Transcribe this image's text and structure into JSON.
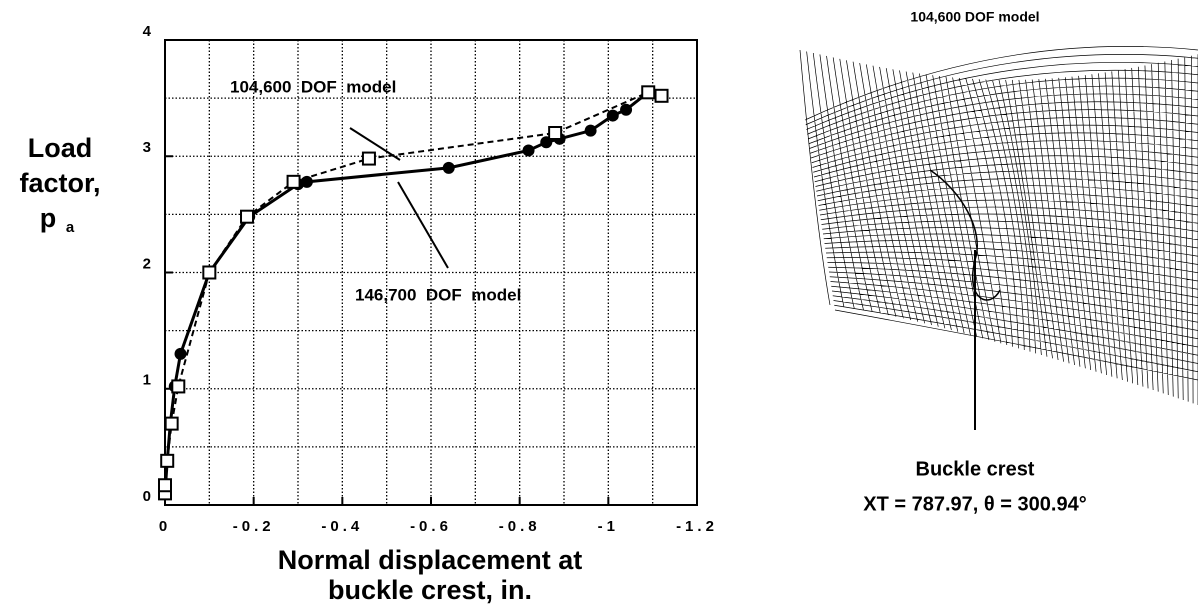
{
  "chart_data": {
    "type": "line",
    "xlim": [
      0,
      -1.2
    ],
    "ylim": [
      0,
      4
    ],
    "xticks": [
      0,
      -0.2,
      -0.4,
      -0.6,
      -0.8,
      -1,
      -1.2
    ],
    "yticks": [
      0,
      1,
      2,
      3,
      4
    ],
    "x_grid_lines": [
      0,
      -0.1,
      -0.2,
      -0.3,
      -0.4,
      -0.5,
      -0.6,
      -0.7,
      -0.8,
      -0.9,
      -1,
      -1.1,
      -1.2
    ],
    "y_grid_lines": [
      0,
      0.5,
      1,
      1.5,
      2,
      2.5,
      3,
      3.5,
      4
    ],
    "x_label_lines": [
      "Normal displacement at",
      "buckle crest, in."
    ],
    "y_label_lines": [
      "Load",
      "factor,",
      "p"
    ],
    "y_label_subscript": "a",
    "series": [
      {
        "name": "146,700  DOF  model",
        "color": "#000000",
        "dash": false,
        "marker": "circle",
        "x": [
          0,
          -0.005,
          -0.012,
          -0.022,
          -0.035,
          -0.1,
          -0.19,
          -0.3,
          -0.32,
          -0.64,
          -0.82,
          -0.86,
          -0.89,
          -0.96,
          -1.01,
          -1.04,
          -1.09
        ],
        "y": [
          0.1,
          0.38,
          0.7,
          1.02,
          1.3,
          2.0,
          2.48,
          2.76,
          2.78,
          2.9,
          3.05,
          3.12,
          3.15,
          3.22,
          3.35,
          3.4,
          3.55
        ]
      },
      {
        "name": "104,600  DOF  model",
        "color": "#000000",
        "dash": true,
        "marker": "square",
        "x": [
          0,
          0,
          -0.005,
          -0.015,
          -0.03,
          -0.1,
          -0.185,
          -0.29,
          -0.46,
          -0.88,
          -1.09,
          -1.12
        ],
        "y": [
          0.1,
          0.17,
          0.38,
          0.7,
          1.02,
          2.0,
          2.48,
          2.78,
          2.98,
          3.2,
          3.55,
          3.52
        ]
      }
    ]
  },
  "mesh_panel": {
    "title": "104,600  DOF  model",
    "caption": "Buckle crest",
    "location": "XT = 787.97, θ = 300.94°"
  }
}
